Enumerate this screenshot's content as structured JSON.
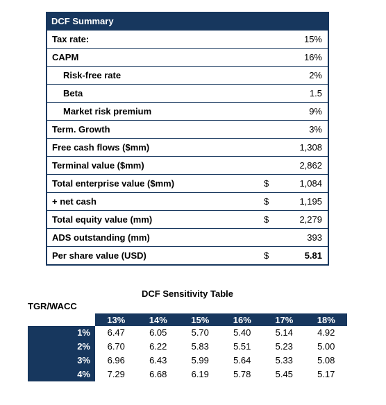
{
  "summary": {
    "title": "DCF Summary",
    "rows": [
      {
        "label": "Tax rate:",
        "value": "15%"
      },
      {
        "label": "CAPM",
        "value": "16%"
      },
      {
        "label": "Risk-free rate",
        "value": "2%",
        "indent": true
      },
      {
        "label": "Beta",
        "value": "1.5",
        "indent": true
      },
      {
        "label": "Market risk premium",
        "value": "9%",
        "indent": true
      },
      {
        "label": "Term. Growth",
        "value": "3%"
      },
      {
        "label": "Free cash flows ($mm)",
        "value": "1,308"
      },
      {
        "label": "Terminal value ($mm)",
        "value": "2,862"
      },
      {
        "label": "Total enterprise value ($mm)",
        "currency": "$",
        "value": "1,084"
      },
      {
        "label": "+ net cash",
        "currency": "$",
        "value": "1,195"
      },
      {
        "label": "Total equity value (mm)",
        "currency": "$",
        "value": "2,279"
      },
      {
        "label": "ADS outstanding (mm)",
        "value": "393"
      },
      {
        "label": "Per share value (USD)",
        "currency": "$",
        "value": "5.81",
        "bold": true
      }
    ]
  },
  "sensitivity": {
    "title": "DCF Sensitivity Table",
    "corner_label": "TGR/WACC",
    "columns": [
      "13%",
      "14%",
      "15%",
      "16%",
      "17%",
      "18%"
    ],
    "rows": [
      {
        "label": "1%",
        "values": [
          "6.47",
          "6.05",
          "5.70",
          "5.40",
          "5.14",
          "4.92"
        ]
      },
      {
        "label": "2%",
        "values": [
          "6.70",
          "6.22",
          "5.83",
          "5.51",
          "5.23",
          "5.00"
        ]
      },
      {
        "label": "3%",
        "values": [
          "6.96",
          "6.43",
          "5.99",
          "5.64",
          "5.33",
          "5.08"
        ]
      },
      {
        "label": "4%",
        "values": [
          "7.29",
          "6.68",
          "6.19",
          "5.78",
          "5.45",
          "5.17"
        ]
      }
    ]
  }
}
